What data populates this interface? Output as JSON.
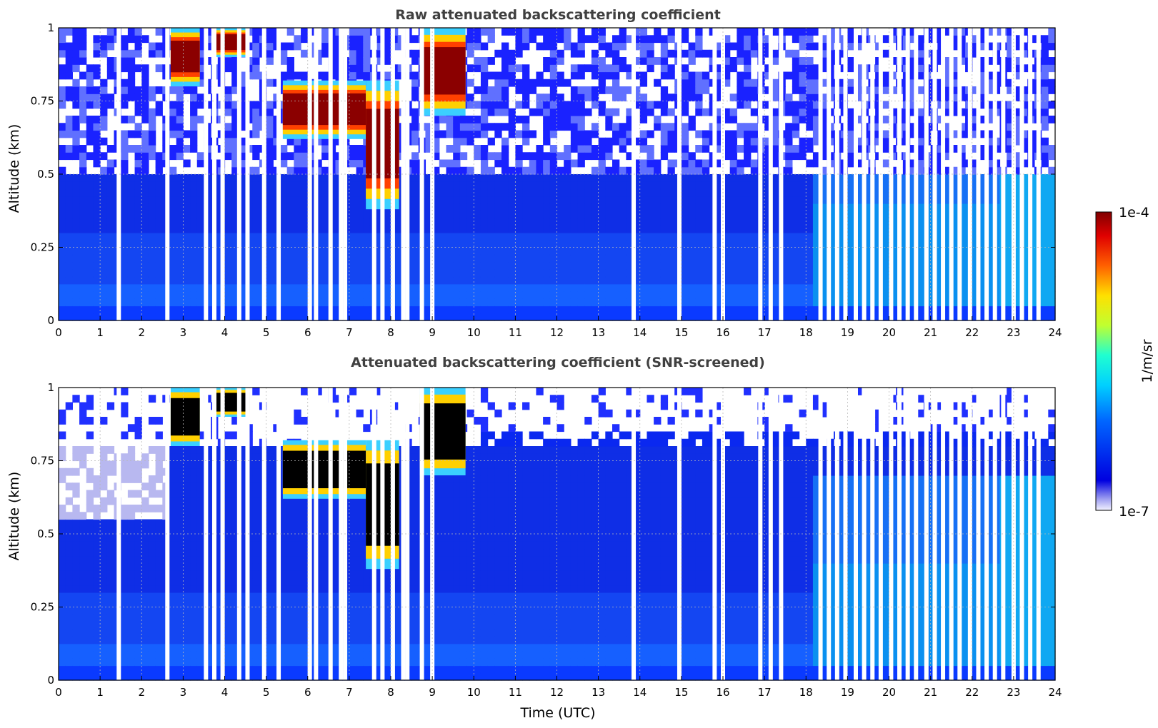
{
  "chart_data": [
    {
      "type": "heatmap",
      "title": "Raw attenuated backscattering coefficient",
      "xlabel": "",
      "ylabel": "Altitude (km)",
      "xlim": [
        0,
        24
      ],
      "ylim": [
        0,
        1
      ],
      "x_ticks": [
        "0",
        "1",
        "2",
        "3",
        "4",
        "5",
        "6",
        "7",
        "8",
        "9",
        "10",
        "11",
        "12",
        "13",
        "14",
        "15",
        "16",
        "17",
        "18",
        "19",
        "20",
        "21",
        "22",
        "23",
        "24"
      ],
      "y_ticks": [
        "0",
        "0.25",
        "0.5",
        "0.75",
        "1"
      ],
      "grid": true,
      "colorscale": "jet",
      "data_gaps_utc": [
        1.45,
        2.62,
        3.55,
        3.75,
        3.95,
        4.35,
        4.55,
        4.95,
        5.3,
        6.05,
        6.2,
        6.55,
        6.8,
        6.9,
        7.6,
        7.8,
        8.05,
        8.3,
        8.4,
        8.75,
        9.0,
        13.85,
        14.95,
        15.8,
        16.0,
        16.9,
        17.15,
        17.4,
        18.35,
        18.55,
        18.75,
        18.95,
        19.2,
        19.4,
        19.6,
        19.8,
        20.05,
        20.25,
        20.45,
        20.65,
        20.9,
        21.1,
        21.3,
        21.5,
        21.7,
        21.95,
        22.15,
        22.35,
        22.55,
        22.75,
        23.0,
        23.2,
        23.4,
        23.6
      ],
      "features": [
        {
          "name": "cloud",
          "t_start": 2.7,
          "t_end": 3.4,
          "base_km": 0.8,
          "top_km": 1.0
        },
        {
          "name": "cloud",
          "t_start": 3.7,
          "t_end": 4.6,
          "base_km": 0.9,
          "top_km": 1.0
        },
        {
          "name": "cloud",
          "t_start": 5.4,
          "t_end": 7.4,
          "base_km": 0.62,
          "top_km": 0.82
        },
        {
          "name": "cloud",
          "t_start": 7.4,
          "t_end": 8.2,
          "base_km": 0.38,
          "top_km": 0.82
        },
        {
          "name": "cloud",
          "t_start": 8.7,
          "t_end": 9.8,
          "base_km": 0.7,
          "top_km": 1.0
        }
      ]
    },
    {
      "type": "heatmap",
      "title": "Attenuated backscattering coefficient (SNR-screened)",
      "xlabel": "Time (UTC)",
      "ylabel": "Altitude (km)",
      "xlim": [
        0,
        24
      ],
      "ylim": [
        0,
        1
      ],
      "x_ticks": [
        "0",
        "1",
        "2",
        "3",
        "4",
        "5",
        "6",
        "7",
        "8",
        "9",
        "10",
        "11",
        "12",
        "13",
        "14",
        "15",
        "16",
        "17",
        "18",
        "19",
        "20",
        "21",
        "22",
        "23",
        "24"
      ],
      "y_ticks": [
        "0",
        "0.25",
        "0.5",
        "0.75",
        "1"
      ],
      "grid": true,
      "colorscale": "jet",
      "screening": "pixels below the SNR threshold are removed (white)"
    }
  ],
  "colorbar": {
    "label": "1/m/sr",
    "max_label": "1e-4",
    "min_label": "1e-7",
    "scale": "log"
  }
}
